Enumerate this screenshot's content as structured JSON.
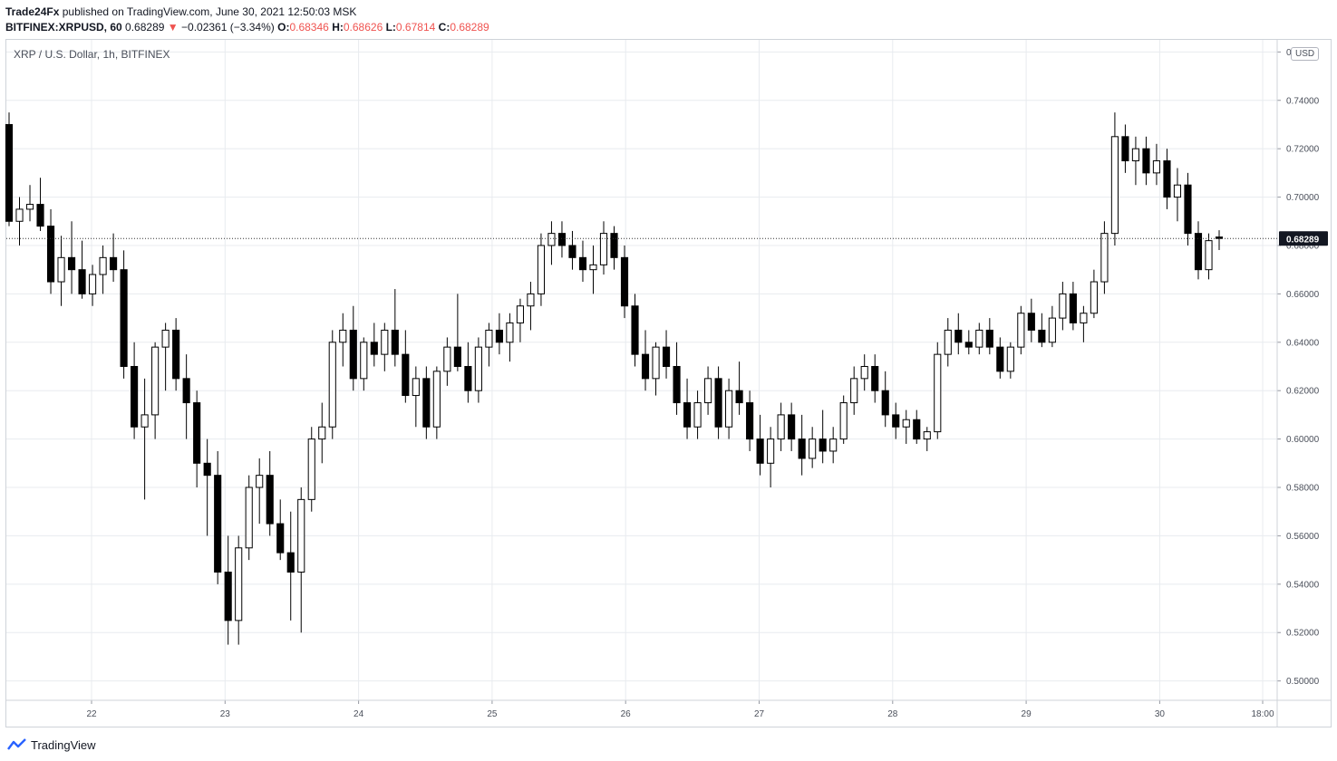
{
  "header": {
    "author": "Trade24Fx",
    "published_text": "published on TradingView.com, June 30, 2021 12:50:03 MSK",
    "symbol_line": "BITFINEX:XRPUSD, 60",
    "last": "0.68289",
    "change": "−0.02361 (−3.34%)",
    "o_label": "O:",
    "o": "0.68346",
    "h_label": "H:",
    "h": "0.68626",
    "l_label": "L:",
    "l": "0.67814",
    "c_label": "C:",
    "c": "0.68289"
  },
  "legend": {
    "title": "XRP / U.S. Dollar, 1h, BITFINEX"
  },
  "currency_badge": "USD",
  "footer": {
    "brand": "TradingView"
  },
  "colors": {
    "up_fill": "#ffffff",
    "down_fill": "#000000",
    "wick": "#000000",
    "grid": "#e8ebef",
    "price_line": "#333333",
    "change_negative": "#ef5350"
  },
  "chart_data": {
    "type": "candlestick",
    "symbol": "XRP / U.S. Dollar",
    "timeframe": "1h",
    "exchange": "BITFINEX",
    "ylim": [
      0.492,
      0.765
    ],
    "y_ticks": [
      "0.50000",
      "0.52000",
      "0.54000",
      "0.56000",
      "0.58000",
      "0.60000",
      "0.62000",
      "0.64000",
      "0.66000",
      "0.68000",
      "0.70000",
      "0.72000",
      "0.74000",
      "0.76000"
    ],
    "x_ticks": [
      "22",
      "23",
      "24",
      "25",
      "26",
      "27",
      "28",
      "29",
      "30",
      "18:00"
    ],
    "last_price_label": "0.68289",
    "grid": true,
    "candles": [
      [
        0.73,
        0.735,
        0.688,
        0.69
      ],
      [
        0.69,
        0.7,
        0.68,
        0.695
      ],
      [
        0.695,
        0.705,
        0.69,
        0.697
      ],
      [
        0.697,
        0.708,
        0.686,
        0.688
      ],
      [
        0.688,
        0.695,
        0.66,
        0.665
      ],
      [
        0.665,
        0.684,
        0.655,
        0.675
      ],
      [
        0.675,
        0.69,
        0.66,
        0.67
      ],
      [
        0.67,
        0.682,
        0.658,
        0.66
      ],
      [
        0.66,
        0.672,
        0.655,
        0.668
      ],
      [
        0.668,
        0.68,
        0.66,
        0.675
      ],
      [
        0.675,
        0.685,
        0.665,
        0.67
      ],
      [
        0.67,
        0.678,
        0.625,
        0.63
      ],
      [
        0.63,
        0.64,
        0.6,
        0.605
      ],
      [
        0.605,
        0.625,
        0.575,
        0.61
      ],
      [
        0.61,
        0.64,
        0.6,
        0.638
      ],
      [
        0.638,
        0.648,
        0.62,
        0.645
      ],
      [
        0.645,
        0.65,
        0.62,
        0.625
      ],
      [
        0.625,
        0.635,
        0.6,
        0.615
      ],
      [
        0.615,
        0.62,
        0.58,
        0.59
      ],
      [
        0.59,
        0.6,
        0.56,
        0.585
      ],
      [
        0.585,
        0.595,
        0.54,
        0.545
      ],
      [
        0.545,
        0.56,
        0.515,
        0.525
      ],
      [
        0.525,
        0.56,
        0.515,
        0.555
      ],
      [
        0.555,
        0.585,
        0.55,
        0.58
      ],
      [
        0.58,
        0.592,
        0.565,
        0.585
      ],
      [
        0.585,
        0.595,
        0.56,
        0.565
      ],
      [
        0.565,
        0.575,
        0.55,
        0.553
      ],
      [
        0.553,
        0.57,
        0.525,
        0.545
      ],
      [
        0.545,
        0.58,
        0.52,
        0.575
      ],
      [
        0.575,
        0.605,
        0.57,
        0.6
      ],
      [
        0.6,
        0.615,
        0.59,
        0.605
      ],
      [
        0.605,
        0.645,
        0.6,
        0.64
      ],
      [
        0.64,
        0.652,
        0.63,
        0.645
      ],
      [
        0.645,
        0.655,
        0.62,
        0.625
      ],
      [
        0.625,
        0.642,
        0.62,
        0.64
      ],
      [
        0.64,
        0.648,
        0.63,
        0.635
      ],
      [
        0.635,
        0.648,
        0.628,
        0.645
      ],
      [
        0.645,
        0.662,
        0.63,
        0.635
      ],
      [
        0.635,
        0.645,
        0.615,
        0.618
      ],
      [
        0.618,
        0.63,
        0.605,
        0.625
      ],
      [
        0.625,
        0.63,
        0.6,
        0.605
      ],
      [
        0.605,
        0.63,
        0.6,
        0.628
      ],
      [
        0.628,
        0.642,
        0.622,
        0.638
      ],
      [
        0.638,
        0.66,
        0.628,
        0.63
      ],
      [
        0.63,
        0.64,
        0.615,
        0.62
      ],
      [
        0.62,
        0.642,
        0.615,
        0.638
      ],
      [
        0.638,
        0.648,
        0.63,
        0.645
      ],
      [
        0.645,
        0.652,
        0.635,
        0.64
      ],
      [
        0.64,
        0.652,
        0.632,
        0.648
      ],
      [
        0.648,
        0.658,
        0.64,
        0.655
      ],
      [
        0.655,
        0.665,
        0.645,
        0.66
      ],
      [
        0.66,
        0.685,
        0.655,
        0.68
      ],
      [
        0.68,
        0.69,
        0.672,
        0.685
      ],
      [
        0.685,
        0.69,
        0.675,
        0.68
      ],
      [
        0.68,
        0.686,
        0.67,
        0.675
      ],
      [
        0.675,
        0.682,
        0.665,
        0.67
      ],
      [
        0.67,
        0.68,
        0.66,
        0.672
      ],
      [
        0.672,
        0.69,
        0.668,
        0.685
      ],
      [
        0.685,
        0.688,
        0.67,
        0.675
      ],
      [
        0.675,
        0.68,
        0.65,
        0.655
      ],
      [
        0.655,
        0.66,
        0.63,
        0.635
      ],
      [
        0.635,
        0.645,
        0.62,
        0.625
      ],
      [
        0.625,
        0.64,
        0.618,
        0.638
      ],
      [
        0.638,
        0.645,
        0.625,
        0.63
      ],
      [
        0.63,
        0.64,
        0.61,
        0.615
      ],
      [
        0.615,
        0.625,
        0.6,
        0.605
      ],
      [
        0.605,
        0.62,
        0.6,
        0.615
      ],
      [
        0.615,
        0.63,
        0.61,
        0.625
      ],
      [
        0.625,
        0.63,
        0.6,
        0.605
      ],
      [
        0.605,
        0.625,
        0.6,
        0.62
      ],
      [
        0.62,
        0.632,
        0.61,
        0.615
      ],
      [
        0.615,
        0.62,
        0.595,
        0.6
      ],
      [
        0.6,
        0.61,
        0.585,
        0.59
      ],
      [
        0.59,
        0.605,
        0.58,
        0.6
      ],
      [
        0.6,
        0.615,
        0.595,
        0.61
      ],
      [
        0.61,
        0.615,
        0.595,
        0.6
      ],
      [
        0.6,
        0.61,
        0.585,
        0.592
      ],
      [
        0.592,
        0.605,
        0.588,
        0.6
      ],
      [
        0.6,
        0.612,
        0.59,
        0.595
      ],
      [
        0.595,
        0.605,
        0.59,
        0.6
      ],
      [
        0.6,
        0.618,
        0.598,
        0.615
      ],
      [
        0.615,
        0.63,
        0.61,
        0.625
      ],
      [
        0.625,
        0.635,
        0.62,
        0.63
      ],
      [
        0.63,
        0.635,
        0.615,
        0.62
      ],
      [
        0.62,
        0.628,
        0.605,
        0.61
      ],
      [
        0.61,
        0.615,
        0.6,
        0.605
      ],
      [
        0.605,
        0.612,
        0.598,
        0.608
      ],
      [
        0.608,
        0.612,
        0.598,
        0.6
      ],
      [
        0.6,
        0.605,
        0.595,
        0.603
      ],
      [
        0.603,
        0.64,
        0.6,
        0.635
      ],
      [
        0.635,
        0.65,
        0.63,
        0.645
      ],
      [
        0.645,
        0.652,
        0.635,
        0.64
      ],
      [
        0.64,
        0.645,
        0.635,
        0.638
      ],
      [
        0.638,
        0.648,
        0.635,
        0.645
      ],
      [
        0.645,
        0.65,
        0.635,
        0.638
      ],
      [
        0.638,
        0.642,
        0.625,
        0.628
      ],
      [
        0.628,
        0.64,
        0.625,
        0.638
      ],
      [
        0.638,
        0.655,
        0.635,
        0.652
      ],
      [
        0.652,
        0.658,
        0.64,
        0.645
      ],
      [
        0.645,
        0.652,
        0.638,
        0.64
      ],
      [
        0.64,
        0.655,
        0.638,
        0.65
      ],
      [
        0.65,
        0.665,
        0.645,
        0.66
      ],
      [
        0.66,
        0.665,
        0.645,
        0.648
      ],
      [
        0.648,
        0.655,
        0.64,
        0.652
      ],
      [
        0.652,
        0.67,
        0.65,
        0.665
      ],
      [
        0.665,
        0.69,
        0.66,
        0.685
      ],
      [
        0.685,
        0.735,
        0.68,
        0.725
      ],
      [
        0.725,
        0.73,
        0.71,
        0.715
      ],
      [
        0.715,
        0.725,
        0.705,
        0.72
      ],
      [
        0.72,
        0.725,
        0.705,
        0.71
      ],
      [
        0.71,
        0.722,
        0.705,
        0.715
      ],
      [
        0.715,
        0.72,
        0.695,
        0.7
      ],
      [
        0.7,
        0.712,
        0.69,
        0.705
      ],
      [
        0.705,
        0.71,
        0.68,
        0.685
      ],
      [
        0.685,
        0.69,
        0.666,
        0.67
      ],
      [
        0.67,
        0.685,
        0.666,
        0.682
      ],
      [
        0.6835,
        0.6863,
        0.6781,
        0.6829
      ]
    ]
  }
}
